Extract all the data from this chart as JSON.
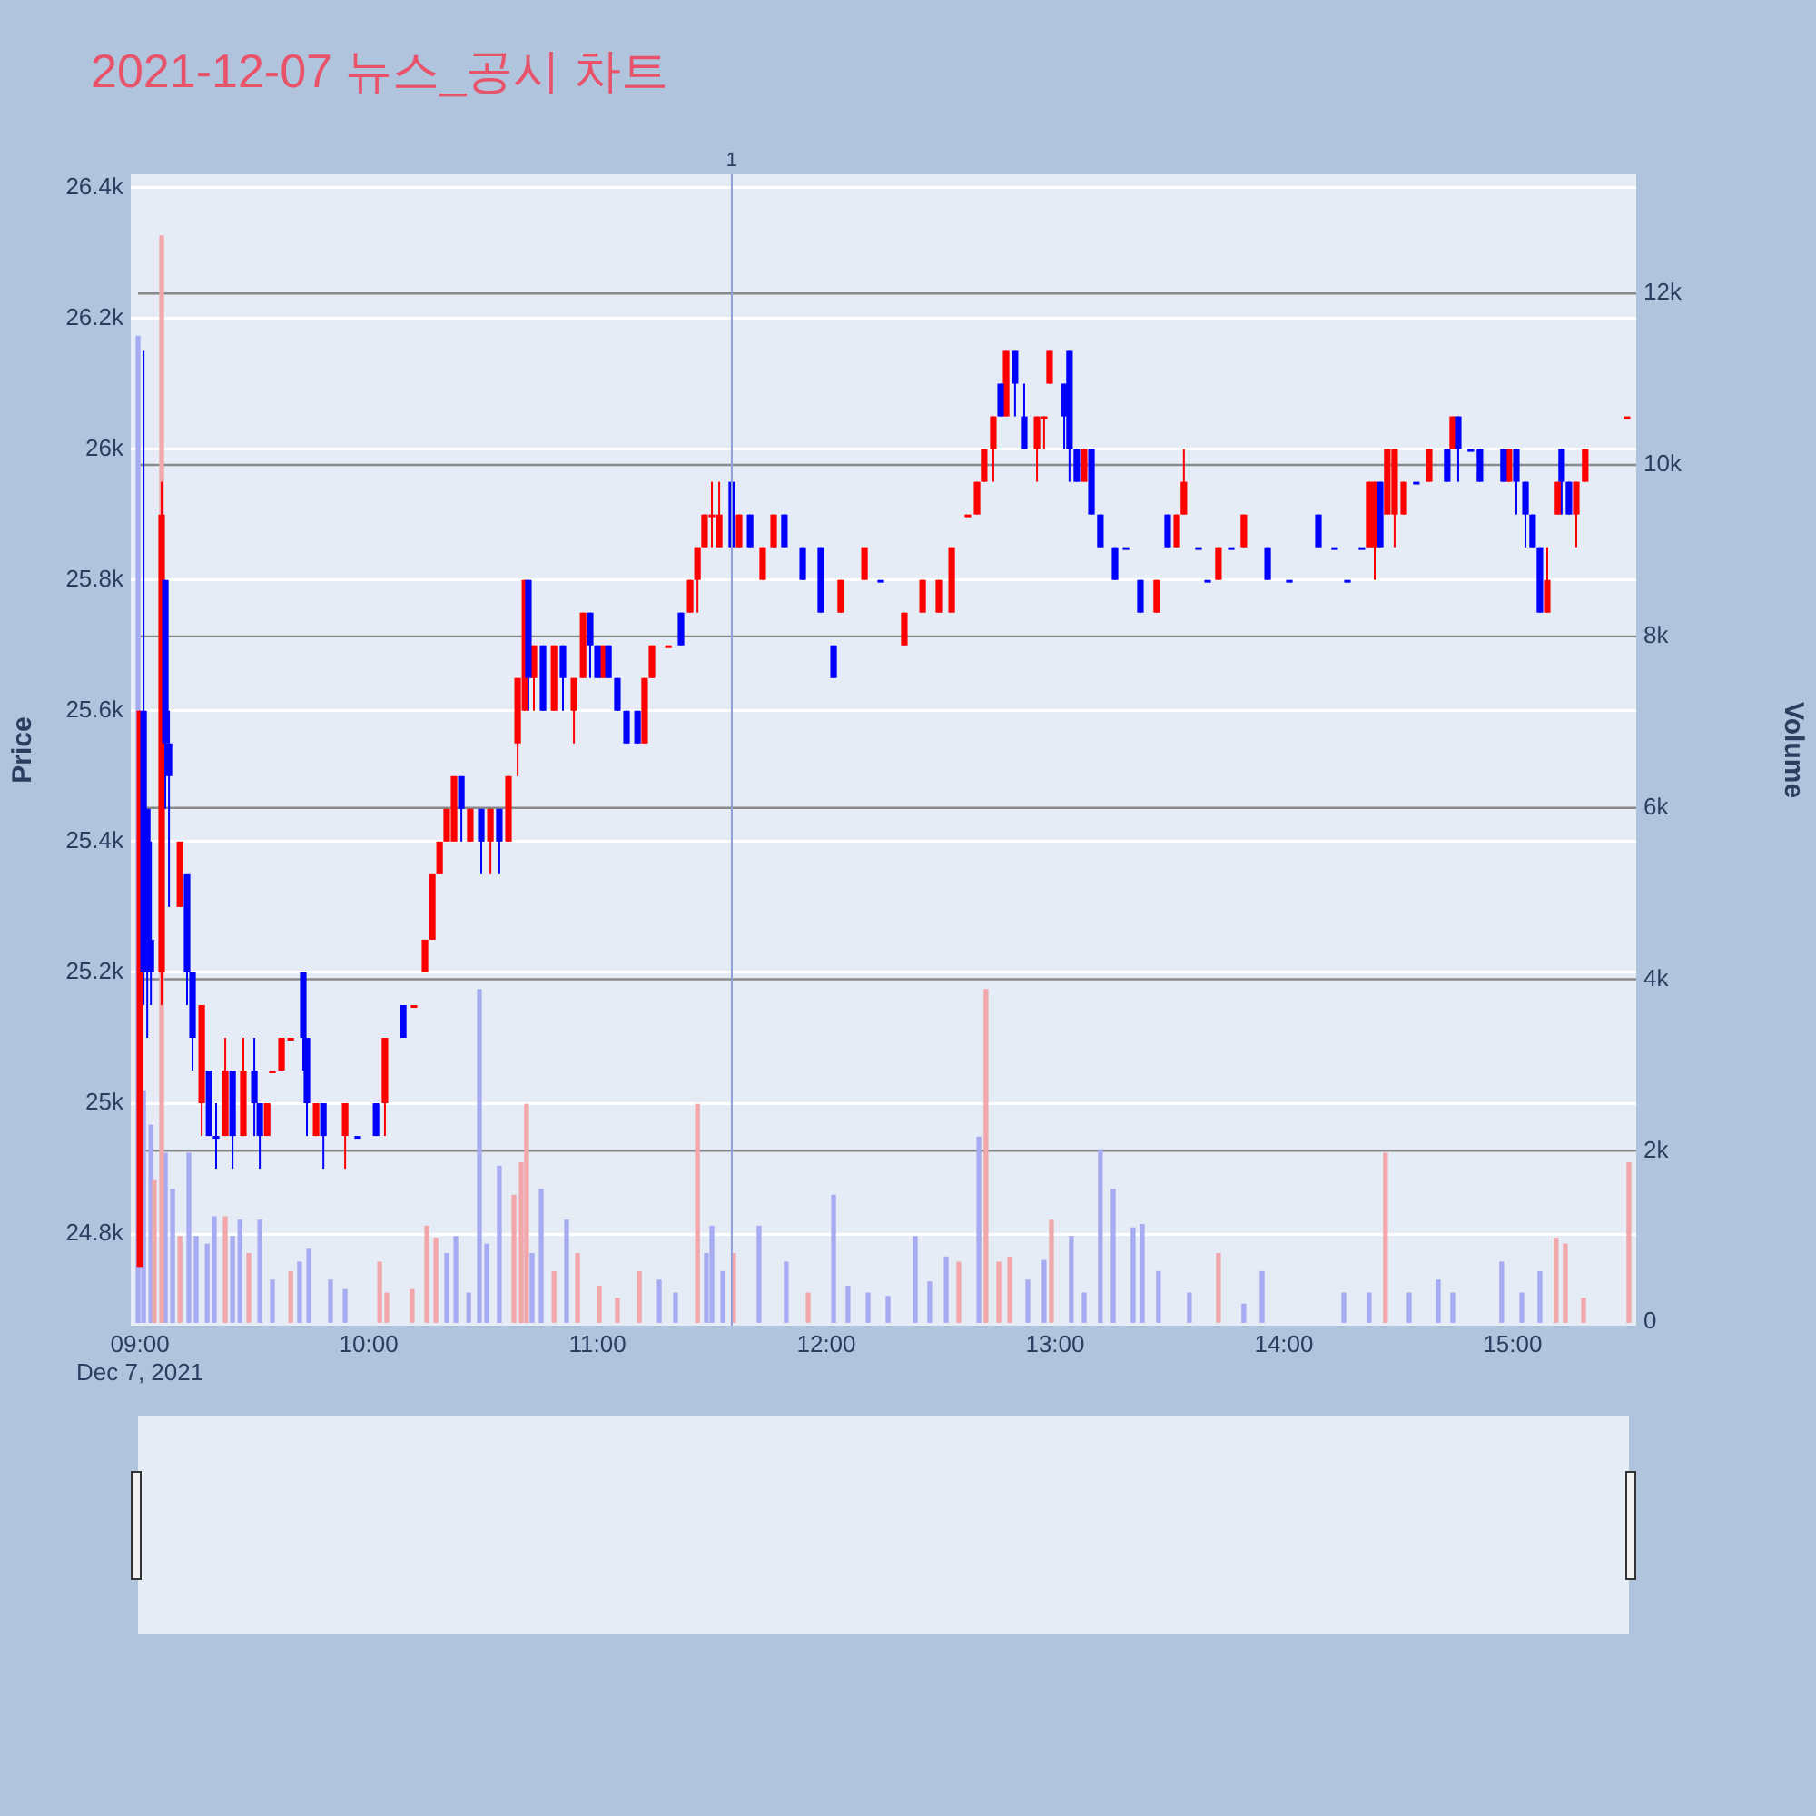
{
  "chart_data": {
    "type": "candlestick",
    "title": "2021-12-07 뉴스_공시 차트",
    "ylabel": "Price",
    "y2label": "Volume",
    "xlim": [
      8.96,
      15.54
    ],
    "xticks": [
      {
        "value": 9,
        "label": "09:00\nDec 7, 2021"
      },
      {
        "value": 10,
        "label": "10:00"
      },
      {
        "value": 11,
        "label": "11:00"
      },
      {
        "value": 12,
        "label": "12:00"
      },
      {
        "value": 13,
        "label": "13:00"
      },
      {
        "value": 14,
        "label": "14:00"
      },
      {
        "value": 15,
        "label": "15:00"
      }
    ],
    "ylim": [
      24660,
      26420
    ],
    "yticks": [
      {
        "value": 24800,
        "label": "24.8k"
      },
      {
        "value": 25000,
        "label": "25k"
      },
      {
        "value": 25200,
        "label": "25.2k"
      },
      {
        "value": 25400,
        "label": "25.4k"
      },
      {
        "value": 25600,
        "label": "25.6k"
      },
      {
        "value": 25800,
        "label": "25.8k"
      },
      {
        "value": 26000,
        "label": "26k"
      },
      {
        "value": 26200,
        "label": "26.2k"
      },
      {
        "value": 26400,
        "label": "26.4k"
      }
    ],
    "y2lim": [
      -40,
      13390
    ],
    "y2ticks": [
      0,
      {
        "value": 2000,
        "label": "2k"
      },
      {
        "value": 4000,
        "label": "4k"
      },
      {
        "value": 6000,
        "label": "6k"
      },
      {
        "value": 8000,
        "label": "8k"
      },
      {
        "value": 10000,
        "label": "10k"
      },
      {
        "value": 12000,
        "label": "12k"
      }
    ],
    "grid": "y",
    "ref_lines": [
      {
        "axis": "x",
        "value": 11.587,
        "color": "#8fa0d8"
      }
    ],
    "annotations": [
      {
        "text": "1",
        "x": 11.587,
        "y": 26420
      }
    ],
    "series": [
      {
        "type": "bar",
        "axis": "y2",
        "color": "#f2a7ab",
        "x": [
          9.063,
          9.095,
          9.175,
          9.373,
          9.476,
          9.659,
          10.048,
          10.079,
          10.19,
          10.254,
          10.294,
          10.635,
          10.667,
          10.69,
          10.81,
          10.913,
          11.008,
          11.087,
          11.183,
          11.437,
          11.595,
          11.921,
          12.579,
          12.698,
          12.754,
          12.802,
          12.984,
          13.714,
          14.444,
          15.19,
          15.23,
          15.31,
          15.508
        ],
        "values": [
          1650,
          12670,
          1000,
          1230,
          800,
          590,
          700,
          340,
          380,
          1120,
          980,
          1480,
          1860,
          2540,
          590,
          800,
          420,
          280,
          590,
          2540,
          800,
          340,
          700,
          3880,
          700,
          760,
          1190,
          800,
          1970,
          980,
          910,
          280,
          1860
        ]
      },
      {
        "type": "bar",
        "axis": "y2",
        "color": "#a7acf2",
        "x": [
          8.992,
          9.016,
          9.048,
          9.111,
          9.143,
          9.214,
          9.246,
          9.294,
          9.325,
          9.405,
          9.437,
          9.524,
          9.579,
          9.698,
          9.738,
          9.833,
          9.897,
          10.341,
          10.381,
          10.437,
          10.484,
          10.516,
          10.571,
          10.714,
          10.754,
          10.865,
          11.27,
          11.341,
          11.476,
          11.5,
          11.548,
          11.706,
          11.825,
          12.032,
          12.095,
          12.183,
          12.27,
          12.389,
          12.452,
          12.524,
          12.667,
          12.881,
          12.952,
          13.071,
          13.127,
          13.198,
          13.254,
          13.341,
          13.381,
          13.452,
          13.587,
          13.825,
          13.905,
          14.262,
          14.373,
          14.548,
          14.675,
          14.738,
          14.952,
          15.04,
          15.119
        ],
        "values": [
          11500,
          2700,
          2300,
          1970,
          1550,
          1970,
          1000,
          910,
          1230,
          1000,
          1190,
          1190,
          490,
          700,
          850,
          490,
          380,
          800,
          1000,
          340,
          3880,
          910,
          1820,
          800,
          1550,
          1190,
          490,
          340,
          800,
          1120,
          590,
          1120,
          700,
          1480,
          420,
          340,
          300,
          1000,
          470,
          760,
          2160,
          490,
          720,
          1000,
          340,
          2010,
          1550,
          1100,
          1140,
          590,
          340,
          210,
          590,
          340,
          340,
          340,
          490,
          340,
          700,
          340,
          590
        ]
      },
      {
        "type": "candlestick",
        "color": "#ff0000",
        "x": [
          9.0,
          9.095,
          9.175,
          9.27,
          9.373,
          9.452,
          9.556,
          9.579,
          9.619,
          9.659,
          9.77,
          9.897,
          10.071,
          10.198,
          10.246,
          10.278,
          10.31,
          10.341,
          10.373,
          10.444,
          10.532,
          10.611,
          10.651,
          10.683,
          10.722,
          10.81,
          10.897,
          10.937,
          11.024,
          11.206,
          11.238,
          11.31,
          11.405,
          11.437,
          11.468,
          11.5,
          11.532,
          11.619,
          11.722,
          11.77,
          12.063,
          12.167,
          12.341,
          12.421,
          12.492,
          12.548,
          12.619,
          12.659,
          12.69,
          12.73,
          12.786,
          12.921,
          12.952,
          12.976,
          13.127,
          13.444,
          13.532,
          13.563,
          13.714,
          13.825,
          14.373,
          14.397,
          14.452,
          14.484,
          14.524,
          14.635,
          14.738,
          14.984,
          15.151,
          15.198,
          15.278,
          15.317,
          15.5
        ],
        "ohlc": [
          [
            24750,
            25600,
            24750,
            25600
          ],
          [
            25200,
            25950,
            25150,
            25900
          ],
          [
            25300,
            25400,
            25300,
            25400
          ],
          [
            25000,
            25150,
            24950,
            25150
          ],
          [
            24950,
            25100,
            24950,
            25050
          ],
          [
            24950,
            25100,
            24950,
            25050
          ],
          [
            24950,
            25000,
            24950,
            25000
          ],
          [
            25050,
            25050,
            25050,
            25050
          ],
          [
            25050,
            25100,
            25050,
            25100
          ],
          [
            25100,
            25100,
            25100,
            25100
          ],
          [
            24950,
            25000,
            24950,
            25000
          ],
          [
            24950,
            25000,
            24900,
            25000
          ],
          [
            25000,
            25100,
            24950,
            25100
          ],
          [
            25150,
            25150,
            25150,
            25150
          ],
          [
            25200,
            25250,
            25200,
            25250
          ],
          [
            25250,
            25350,
            25250,
            25350
          ],
          [
            25350,
            25400,
            25350,
            25400
          ],
          [
            25400,
            25450,
            25400,
            25450
          ],
          [
            25400,
            25500,
            25400,
            25500
          ],
          [
            25400,
            25450,
            25400,
            25450
          ],
          [
            25400,
            25450,
            25350,
            25450
          ],
          [
            25400,
            25500,
            25400,
            25500
          ],
          [
            25550,
            25650,
            25500,
            25650
          ],
          [
            25600,
            25800,
            25600,
            25800
          ],
          [
            25650,
            25700,
            25600,
            25700
          ],
          [
            25600,
            25700,
            25600,
            25700
          ],
          [
            25600,
            25650,
            25550,
            25650
          ],
          [
            25650,
            25750,
            25650,
            25750
          ],
          [
            25650,
            25700,
            25650,
            25700
          ],
          [
            25550,
            25650,
            25550,
            25650
          ],
          [
            25650,
            25700,
            25650,
            25700
          ],
          [
            25700,
            25700,
            25700,
            25700
          ],
          [
            25750,
            25800,
            25750,
            25800
          ],
          [
            25800,
            25850,
            25750,
            25850
          ],
          [
            25850,
            25900,
            25850,
            25900
          ],
          [
            25900,
            25950,
            25850,
            25900
          ],
          [
            25850,
            25950,
            25850,
            25900
          ],
          [
            25850,
            25900,
            25850,
            25900
          ],
          [
            25800,
            25850,
            25800,
            25850
          ],
          [
            25850,
            25900,
            25850,
            25900
          ],
          [
            25750,
            25800,
            25750,
            25800
          ],
          [
            25800,
            25850,
            25800,
            25850
          ],
          [
            25700,
            25750,
            25700,
            25750
          ],
          [
            25750,
            25800,
            25750,
            25800
          ],
          [
            25750,
            25800,
            25750,
            25800
          ],
          [
            25750,
            25850,
            25750,
            25850
          ],
          [
            25900,
            25900,
            25900,
            25900
          ],
          [
            25900,
            25950,
            25900,
            25950
          ],
          [
            25950,
            26000,
            25950,
            26000
          ],
          [
            26000,
            26050,
            25950,
            26050
          ],
          [
            26050,
            26150,
            26050,
            26150
          ],
          [
            26000,
            26050,
            25950,
            26050
          ],
          [
            26050,
            26050,
            26000,
            26050
          ],
          [
            26100,
            26150,
            26100,
            26150
          ],
          [
            25950,
            26000,
            25950,
            26000
          ],
          [
            25750,
            25800,
            25750,
            25800
          ],
          [
            25850,
            25900,
            25850,
            25900
          ],
          [
            25900,
            26000,
            25900,
            25950
          ],
          [
            25800,
            25850,
            25800,
            25850
          ],
          [
            25850,
            25900,
            25850,
            25900
          ],
          [
            25850,
            25950,
            25850,
            25950
          ],
          [
            25850,
            25950,
            25800,
            25950
          ],
          [
            25900,
            26000,
            25900,
            26000
          ],
          [
            25900,
            26000,
            25850,
            26000
          ],
          [
            25900,
            25950,
            25900,
            25950
          ],
          [
            25950,
            26000,
            25950,
            26000
          ],
          [
            26000,
            26050,
            26000,
            26050
          ],
          [
            25950,
            26000,
            25950,
            26000
          ],
          [
            25750,
            25850,
            25750,
            25800
          ],
          [
            25900,
            25950,
            25900,
            25950
          ],
          [
            25900,
            25950,
            25850,
            25950
          ],
          [
            25950,
            26000,
            25950,
            26000
          ],
          [
            26050,
            26050,
            26050,
            26050
          ]
        ]
      },
      {
        "type": "candlestick",
        "color": "#0000ff",
        "x": [
          9.016,
          9.032,
          9.048,
          9.111,
          9.127,
          9.206,
          9.23,
          9.302,
          9.333,
          9.405,
          9.5,
          9.524,
          9.714,
          9.73,
          9.802,
          9.952,
          10.032,
          10.151,
          10.405,
          10.492,
          10.571,
          10.698,
          10.762,
          10.849,
          10.968,
          11.0,
          11.048,
          11.087,
          11.127,
          11.175,
          11.365,
          11.587,
          11.667,
          11.817,
          11.897,
          11.976,
          12.032,
          12.238,
          12.762,
          12.825,
          12.865,
          13.04,
          13.063,
          13.095,
          13.159,
          13.198,
          13.262,
          13.31,
          13.373,
          13.492,
          13.627,
          13.667,
          13.77,
          13.929,
          14.024,
          14.151,
          14.222,
          14.278,
          14.341,
          14.421,
          14.579,
          14.714,
          14.762,
          14.817,
          14.857,
          14.96,
          15.016,
          15.056,
          15.087,
          15.119,
          15.214,
          15.246
        ],
        "ohlc": [
          [
            25600,
            26150,
            25150,
            25200
          ],
          [
            25450,
            25450,
            25100,
            25250
          ],
          [
            25250,
            25400,
            25150,
            25200
          ],
          [
            25800,
            25800,
            25450,
            25550
          ],
          [
            25550,
            25600,
            25300,
            25500
          ],
          [
            25350,
            25350,
            25150,
            25200
          ],
          [
            25200,
            25200,
            25050,
            25100
          ],
          [
            25050,
            25050,
            24950,
            24950
          ],
          [
            24950,
            25000,
            24900,
            24950
          ],
          [
            25050,
            25050,
            24900,
            24950
          ],
          [
            25050,
            25100,
            24950,
            25000
          ],
          [
            25000,
            25000,
            24900,
            24950
          ],
          [
            25200,
            25200,
            25050,
            25100
          ],
          [
            25100,
            25100,
            24950,
            25000
          ],
          [
            25000,
            25000,
            24900,
            24950
          ],
          [
            24950,
            24950,
            24950,
            24950
          ],
          [
            25000,
            25000,
            24950,
            24950
          ],
          [
            25150,
            25150,
            25100,
            25100
          ],
          [
            25500,
            25500,
            25400,
            25450
          ],
          [
            25450,
            25450,
            25350,
            25400
          ],
          [
            25450,
            25450,
            25350,
            25400
          ],
          [
            25800,
            25800,
            25600,
            25650
          ],
          [
            25700,
            25700,
            25600,
            25600
          ],
          [
            25700,
            25700,
            25600,
            25650
          ],
          [
            25750,
            25750,
            25650,
            25700
          ],
          [
            25700,
            25700,
            25650,
            25650
          ],
          [
            25700,
            25700,
            25650,
            25650
          ],
          [
            25650,
            25650,
            25600,
            25600
          ],
          [
            25600,
            25600,
            25550,
            25550
          ],
          [
            25600,
            25600,
            25550,
            25550
          ],
          [
            25750,
            25750,
            25700,
            25700
          ],
          [
            25950,
            25950,
            25850,
            25850
          ],
          [
            25900,
            25900,
            25850,
            25850
          ],
          [
            25900,
            25900,
            25850,
            25850
          ],
          [
            25850,
            25850,
            25800,
            25800
          ],
          [
            25850,
            25850,
            25750,
            25750
          ],
          [
            25700,
            25700,
            25650,
            25650
          ],
          [
            25800,
            25800,
            25800,
            25800
          ],
          [
            26100,
            26100,
            26050,
            26050
          ],
          [
            26150,
            26150,
            26050,
            26100
          ],
          [
            26050,
            26100,
            26000,
            26000
          ],
          [
            26100,
            26100,
            26000,
            26050
          ],
          [
            26150,
            26150,
            25950,
            26000
          ],
          [
            26000,
            26000,
            25950,
            25950
          ],
          [
            26000,
            26000,
            25900,
            25900
          ],
          [
            25900,
            25900,
            25850,
            25850
          ],
          [
            25850,
            25850,
            25800,
            25800
          ],
          [
            25850,
            25850,
            25850,
            25850
          ],
          [
            25800,
            25800,
            25750,
            25750
          ],
          [
            25900,
            25900,
            25850,
            25850
          ],
          [
            25850,
            25850,
            25850,
            25850
          ],
          [
            25800,
            25800,
            25800,
            25800
          ],
          [
            25850,
            25850,
            25850,
            25850
          ],
          [
            25850,
            25850,
            25800,
            25800
          ],
          [
            25800,
            25800,
            25800,
            25800
          ],
          [
            25900,
            25900,
            25850,
            25850
          ],
          [
            25850,
            25850,
            25850,
            25850
          ],
          [
            25800,
            25800,
            25800,
            25800
          ],
          [
            25850,
            25850,
            25850,
            25850
          ],
          [
            25950,
            25950,
            25850,
            25850
          ],
          [
            25950,
            25950,
            25950,
            25950
          ],
          [
            26000,
            26000,
            25950,
            25950
          ],
          [
            26050,
            26050,
            25950,
            26000
          ],
          [
            26000,
            26000,
            26000,
            26000
          ],
          [
            26000,
            26000,
            25950,
            25950
          ],
          [
            26000,
            26000,
            25950,
            25950
          ],
          [
            26000,
            26000,
            25900,
            25950
          ],
          [
            25950,
            25950,
            25850,
            25900
          ],
          [
            25900,
            25900,
            25850,
            25850
          ],
          [
            25850,
            25850,
            25750,
            25750
          ],
          [
            26000,
            26000,
            25900,
            25950
          ],
          [
            25950,
            25950,
            25900,
            25900
          ]
        ]
      }
    ]
  }
}
